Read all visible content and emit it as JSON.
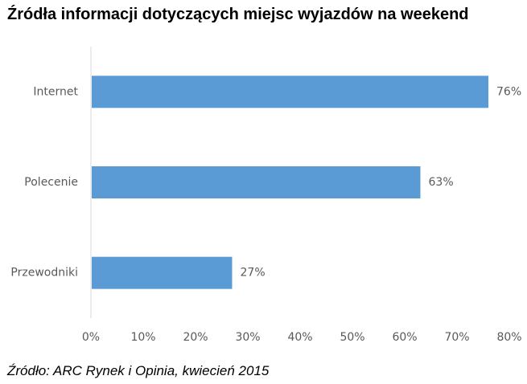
{
  "chart_data": {
    "type": "bar",
    "orientation": "horizontal",
    "title": "Źródła informacji dotyczących miejsc wyjazdów na weekend",
    "categories": [
      "Internet",
      "Polecenie",
      "Przewodniki"
    ],
    "values": [
      76,
      63,
      27
    ],
    "data_labels": [
      "76%",
      "63%",
      "27%"
    ],
    "x_ticks": [
      "0%",
      "10%",
      "20%",
      "30%",
      "40%",
      "50%",
      "60%",
      "70%",
      "80%"
    ],
    "xlim": [
      0,
      80
    ],
    "xlabel": "",
    "ylabel": "",
    "grid": false,
    "legend": "none",
    "bar_color": "#5B9BD5",
    "source": "Źródło: ARC Rynek i Opinia, kwiecień 2015"
  }
}
